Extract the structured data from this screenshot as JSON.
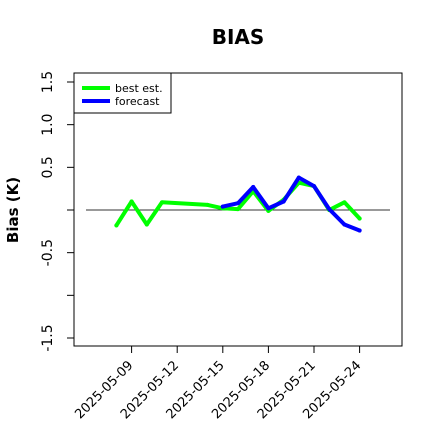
{
  "chart_data": {
    "type": "line",
    "title": "BIAS",
    "xlabel": "",
    "ylabel": "Bias (K)",
    "ylim": [
      -1.5,
      1.5
    ],
    "yticks": [
      -1.5,
      -1.0,
      -0.5,
      0.0,
      0.5,
      1.0,
      1.5
    ],
    "ytick_labels": [
      "-1.5",
      "",
      "-0.5",
      "",
      "0.5",
      "1.0",
      "1.5"
    ],
    "xlim": [
      "2025-05-06",
      "2025-05-26"
    ],
    "xtick_labels": [
      "2025-05-09",
      "2025-05-12",
      "2025-05-15",
      "2025-05-18",
      "2025-05-21",
      "2025-05-24"
    ],
    "highlighted_tick": "2025-05-15",
    "highlight_color": "#228B22",
    "reference_line": 0.0,
    "legend": {
      "position": "top-left",
      "entries": [
        "best est.",
        "forecast"
      ]
    },
    "grid": false,
    "series": [
      {
        "name": "best est.",
        "color": "#00ff00",
        "x": [
          "2025-05-08",
          "2025-05-09",
          "2025-05-10",
          "2025-05-11",
          "2025-05-14",
          "2025-05-15",
          "2025-05-16",
          "2025-05-17",
          "2025-05-18",
          "2025-05-19",
          "2025-05-20",
          "2025-05-21",
          "2025-05-22",
          "2025-05-23",
          "2025-05-24"
        ],
        "values": [
          -0.18,
          0.1,
          -0.17,
          0.09,
          0.06,
          0.02,
          0.01,
          0.22,
          -0.01,
          0.12,
          0.32,
          0.28,
          0.0,
          0.09,
          -0.1
        ]
      },
      {
        "name": "forecast",
        "color": "#0000ff",
        "x": [
          "2025-05-15",
          "2025-05-16",
          "2025-05-17",
          "2025-05-18",
          "2025-05-19",
          "2025-05-20",
          "2025-05-21",
          "2025-05-22",
          "2025-05-23",
          "2025-05-24"
        ],
        "values": [
          0.04,
          0.08,
          0.27,
          0.02,
          0.1,
          0.38,
          0.28,
          0.01,
          -0.17,
          -0.24
        ]
      }
    ]
  }
}
